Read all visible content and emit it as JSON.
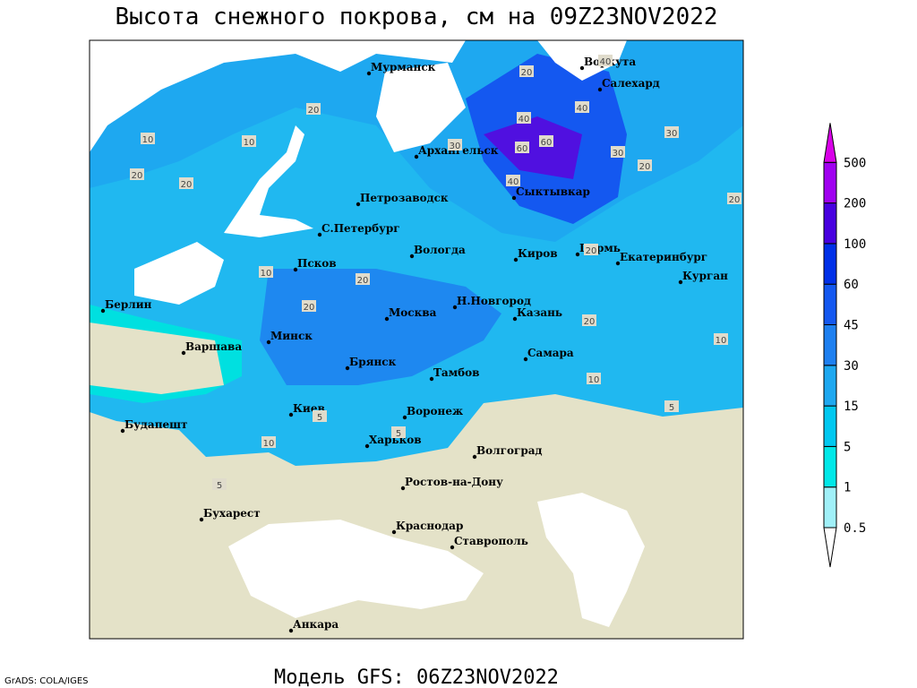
{
  "header": {
    "title": "Высота снежного покрова, см на 09Z23NOV2022",
    "subtitle": "Модель GFS: 06Z23NOV2022",
    "credit": "GrADS: COLA/IGES"
  },
  "map": {
    "cities": [
      "Мурманск",
      "Воркута",
      "Салехард",
      "Архангельск",
      "Сыктывкар",
      "Петрозаводск",
      "С.Петербург",
      "Вологда",
      "Киров",
      "Пермь",
      "Екатеринбург",
      "Курган",
      "Псков",
      "Берлин",
      "Н.Новгород",
      "Москва",
      "Казань",
      "Минск",
      "Варшава",
      "Брянск",
      "Тамбов",
      "Самара",
      "Киев",
      "Воронеж",
      "Будапешт",
      "Харьков",
      "Волгоград",
      "Ростов-на-Дону",
      "Бухарест",
      "Краснодар",
      "Ставрополь",
      "Анкара"
    ],
    "contour_labels": [
      20,
      10,
      20,
      20,
      10,
      30,
      40,
      60,
      60,
      40,
      30,
      20,
      20,
      40,
      30,
      20,
      20,
      20,
      10,
      10,
      10,
      5,
      10,
      5,
      5,
      20,
      5,
      40,
      20
    ]
  },
  "legend": {
    "levels": [
      0.5,
      1,
      5,
      15,
      30,
      45,
      60,
      100,
      200,
      500
    ],
    "colors": [
      "#ffffff",
      "#a0f0f8",
      "#00e8e8",
      "#00c8f0",
      "#1ea8f0",
      "#1e80f0",
      "#1458f0",
      "#0030e8",
      "#4800e0",
      "#a000f0",
      "#d800e8"
    ]
  }
}
